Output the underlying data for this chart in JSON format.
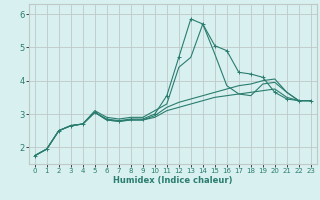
{
  "xlabel": "Humidex (Indice chaleur)",
  "xlim": [
    -0.5,
    23.5
  ],
  "ylim": [
    1.5,
    6.3
  ],
  "bg_color": "#d8f0f0",
  "grid_color": "#c0c8c8",
  "line_color": "#2a7d6e",
  "xticks": [
    0,
    1,
    2,
    3,
    4,
    5,
    6,
    7,
    8,
    9,
    10,
    11,
    12,
    13,
    14,
    15,
    16,
    17,
    18,
    19,
    20,
    21,
    22,
    23
  ],
  "yticks": [
    2,
    3,
    4,
    5,
    6
  ],
  "lines": [
    {
      "x": [
        0,
        1,
        2,
        3,
        4,
        5,
        6,
        7,
        8,
        9,
        10,
        11,
        12,
        13,
        14,
        15,
        16,
        17,
        18,
        19,
        20,
        21,
        22,
        23
      ],
      "y": [
        1.75,
        1.95,
        2.5,
        2.65,
        2.7,
        3.05,
        2.85,
        2.8,
        2.85,
        2.85,
        3.0,
        3.55,
        4.7,
        5.85,
        5.7,
        5.05,
        4.9,
        4.25,
        4.2,
        4.1,
        3.65,
        3.45,
        3.4,
        3.4
      ],
      "marker": true
    },
    {
      "x": [
        0,
        1,
        2,
        3,
        4,
        5,
        6,
        7,
        8,
        9,
        10,
        11,
        12,
        13,
        14,
        15,
        16,
        17,
        18,
        19,
        20,
        21,
        22,
        23
      ],
      "y": [
        1.75,
        1.95,
        2.5,
        2.65,
        2.7,
        3.1,
        2.9,
        2.85,
        2.9,
        2.9,
        3.1,
        3.3,
        4.4,
        4.7,
        5.7,
        4.8,
        3.85,
        3.6,
        3.55,
        3.9,
        3.95,
        3.65,
        3.4,
        3.4
      ],
      "marker": false
    },
    {
      "x": [
        0,
        1,
        2,
        3,
        4,
        5,
        6,
        7,
        8,
        9,
        10,
        11,
        12,
        13,
        14,
        15,
        16,
        17,
        18,
        19,
        20,
        21,
        22,
        23
      ],
      "y": [
        1.75,
        1.95,
        2.5,
        2.65,
        2.7,
        3.05,
        2.82,
        2.78,
        2.82,
        2.82,
        2.95,
        3.2,
        3.35,
        3.45,
        3.55,
        3.65,
        3.75,
        3.85,
        3.9,
        4.0,
        4.05,
        3.65,
        3.4,
        3.4
      ],
      "marker": false
    },
    {
      "x": [
        0,
        1,
        2,
        3,
        4,
        5,
        6,
        7,
        8,
        9,
        10,
        11,
        12,
        13,
        14,
        15,
        16,
        17,
        18,
        19,
        20,
        21,
        22,
        23
      ],
      "y": [
        1.75,
        1.95,
        2.5,
        2.65,
        2.7,
        3.05,
        2.82,
        2.78,
        2.82,
        2.82,
        2.9,
        3.1,
        3.2,
        3.3,
        3.4,
        3.5,
        3.55,
        3.6,
        3.65,
        3.7,
        3.75,
        3.5,
        3.4,
        3.4
      ],
      "marker": false
    }
  ]
}
